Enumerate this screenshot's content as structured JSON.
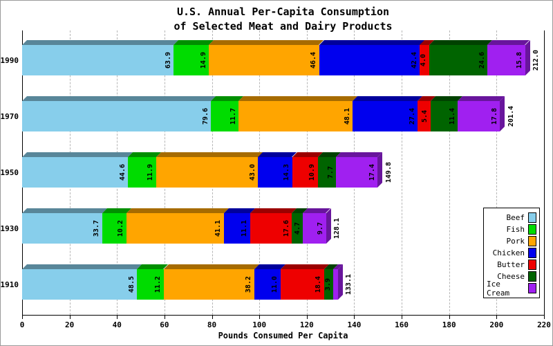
{
  "title": {
    "line1": "U.S. Annual Per-Capita Consumption",
    "line2": "of Selected Meat and Dairy Products"
  },
  "chart_data": {
    "type": "bar",
    "stacked": true,
    "orientation": "horizontal",
    "xlabel": "Pounds Consumed Per Capita",
    "categories": [
      "1990",
      "1970",
      "1950",
      "1930",
      "1910"
    ],
    "series": [
      {
        "name": "Beef",
        "color": "#87CEEB",
        "values": [
          63.9,
          79.6,
          44.6,
          33.7,
          48.5
        ]
      },
      {
        "name": "Fish",
        "color": "#00DC00",
        "values": [
          14.9,
          11.7,
          11.9,
          10.2,
          11.2
        ]
      },
      {
        "name": "Pork",
        "color": "#FFA500",
        "values": [
          46.4,
          48.1,
          43.0,
          41.1,
          38.2
        ]
      },
      {
        "name": "Chicken",
        "color": "#0000EE",
        "values": [
          42.4,
          27.4,
          14.3,
          11.1,
          11.0
        ]
      },
      {
        "name": "Butter",
        "color": "#EE0000",
        "values": [
          4.0,
          5.4,
          10.9,
          17.6,
          18.4
        ]
      },
      {
        "name": "Cheese",
        "color": "#006400",
        "values": [
          24.6,
          11.4,
          7.7,
          4.7,
          3.9
        ]
      },
      {
        "name": "Ice Cream",
        "color": "#A020F0",
        "values": [
          15.8,
          17.8,
          17.4,
          9.7,
          1.9
        ]
      }
    ],
    "totals": [
      212.0,
      201.4,
      149.8,
      128.1,
      133.1
    ],
    "x_ticks": [
      0,
      20,
      40,
      60,
      80,
      100,
      120,
      140,
      160,
      180,
      200,
      220
    ],
    "xlim": [
      0,
      220
    ],
    "grid": "vertical-dashed",
    "legend_position": "right-middle",
    "min_label_value": 2.7
  }
}
